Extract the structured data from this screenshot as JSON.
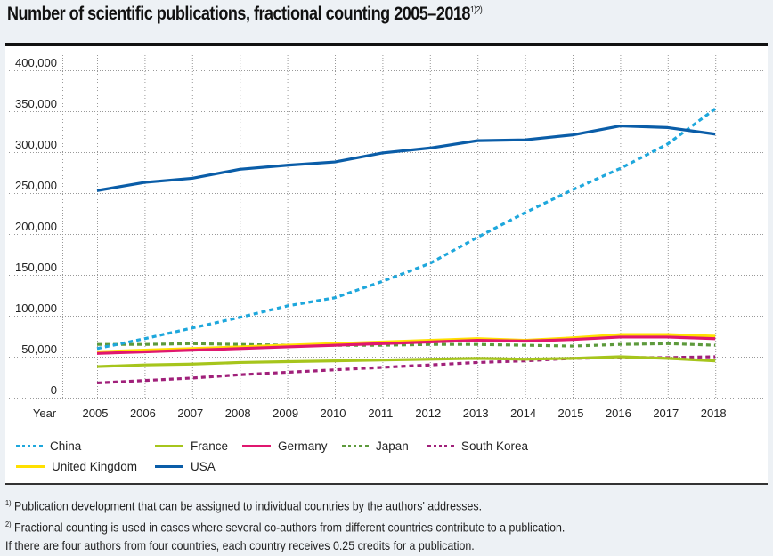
{
  "chart_data": {
    "type": "line",
    "title": "Number of scientific publications, fractional counting 2005–2018",
    "title_footnote_marks": "1)2)",
    "xlabel": "Year",
    "ylabel": "",
    "x": [
      2005,
      2006,
      2007,
      2008,
      2009,
      2010,
      2011,
      2012,
      2013,
      2014,
      2015,
      2016,
      2017,
      2018
    ],
    "ylim": [
      0,
      400000
    ],
    "yticks": [
      0,
      50000,
      100000,
      150000,
      200000,
      250000,
      300000,
      350000,
      400000
    ],
    "ytick_labels": [
      "0",
      "50,000",
      "100,000",
      "150,000",
      "200,000",
      "250,000",
      "300,000",
      "350,000",
      "400,000"
    ],
    "grid": true,
    "legend_placement": "bottom",
    "series": [
      {
        "name": "China",
        "color": "#1ea7dc",
        "dash": "dotted",
        "values": [
          60000,
          72000,
          85000,
          98000,
          112000,
          122000,
          142000,
          164000,
          196000,
          226000,
          254000,
          280000,
          310000,
          353000
        ]
      },
      {
        "name": "France",
        "color": "#a6c51c",
        "dash": "solid",
        "values": [
          38000,
          40000,
          41000,
          43000,
          44000,
          45000,
          46000,
          47000,
          48000,
          47000,
          48000,
          50000,
          48000,
          45000
        ]
      },
      {
        "name": "Germany",
        "color": "#e0176f",
        "dash": "solid",
        "values": [
          54000,
          56000,
          58000,
          60000,
          62000,
          64000,
          66000,
          68000,
          70000,
          69000,
          71000,
          74000,
          74000,
          72000
        ]
      },
      {
        "name": "Japan",
        "color": "#5d9a3c",
        "dash": "dotted",
        "values": [
          65000,
          65000,
          66000,
          65000,
          64000,
          64000,
          64000,
          65000,
          65000,
          64000,
          63000,
          65000,
          66000,
          64000
        ]
      },
      {
        "name": "South Korea",
        "color": "#a0207a",
        "dash": "dotted",
        "values": [
          18000,
          21000,
          24000,
          28000,
          31000,
          34000,
          37000,
          40000,
          43000,
          45000,
          48000,
          49000,
          49000,
          50000
        ]
      },
      {
        "name": "United Kingdom",
        "color": "#ffe000",
        "dash": "solid",
        "values": [
          56000,
          58000,
          60000,
          62000,
          64000,
          66000,
          68000,
          70000,
          72000,
          70000,
          73000,
          77000,
          77000,
          75000
        ]
      },
      {
        "name": "USA",
        "color": "#0a5da8",
        "dash": "solid",
        "values": [
          253000,
          263000,
          268000,
          279000,
          284000,
          288000,
          299000,
          305000,
          314000,
          315000,
          321000,
          332000,
          330000,
          322000
        ]
      }
    ]
  },
  "footnotes": [
    {
      "mark": "1)",
      "text": "Publication development that can be assigned to individual countries by the authors' addresses."
    },
    {
      "mark": "2)",
      "text": "Fractional counting is used in cases where several co-authors from different countries contribute to a publication."
    },
    {
      "mark": "",
      "text": "If there are four authors from four countries, each country receives 0.25 credits for a publication."
    }
  ]
}
